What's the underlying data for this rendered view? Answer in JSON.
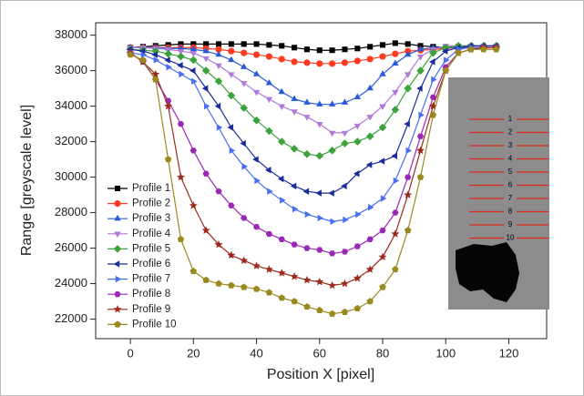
{
  "chart_data": {
    "type": "line",
    "x_label": "Position X [pixel]",
    "y_label": "Range [greyscale level]",
    "xlim": [
      -11,
      132
    ],
    "ylim": [
      20900,
      38700
    ],
    "xticks": [
      0,
      20,
      40,
      60,
      80,
      100,
      120
    ],
    "yticks": [
      22000,
      24000,
      26000,
      28000,
      30000,
      32000,
      34000,
      36000,
      38000
    ],
    "legend": "left",
    "x": [
      0,
      4,
      8,
      12,
      16,
      20,
      24,
      28,
      32,
      36,
      40,
      44,
      48,
      52,
      56,
      60,
      64,
      68,
      72,
      76,
      80,
      84,
      88,
      92,
      96,
      100,
      104,
      108,
      112,
      116
    ],
    "series": [
      {
        "name": "Profile 1",
        "color": "#000000",
        "marker": "square",
        "values": [
          37300,
          37350,
          37400,
          37450,
          37500,
          37500,
          37500,
          37500,
          37500,
          37500,
          37500,
          37450,
          37400,
          37300,
          37200,
          37150,
          37150,
          37200,
          37250,
          37350,
          37450,
          37550,
          37500,
          37400,
          37350,
          37300,
          37300,
          37300,
          37300,
          37300
        ]
      },
      {
        "name": "Profile 2",
        "color": "#ff3b1f",
        "marker": "circle",
        "values": [
          37300,
          37300,
          37300,
          37300,
          37300,
          37300,
          37250,
          37200,
          37100,
          37000,
          36900,
          36800,
          36650,
          36500,
          36450,
          36400,
          36400,
          36450,
          36550,
          36650,
          36800,
          36950,
          37100,
          37150,
          37200,
          37250,
          37300,
          37300,
          37300,
          37300
        ]
      },
      {
        "name": "Profile 3",
        "color": "#2a5bd7",
        "marker": "triangle-up",
        "values": [
          37300,
          37300,
          37300,
          37250,
          37250,
          37200,
          37100,
          36900,
          36600,
          36200,
          35800,
          35300,
          34800,
          34400,
          34200,
          34100,
          34100,
          34200,
          34500,
          35000,
          35800,
          36400,
          36900,
          37200,
          37300,
          37300,
          37300,
          37300,
          37300,
          37300
        ]
      },
      {
        "name": "Profile 4",
        "color": "#b07ad9",
        "marker": "triangle-down",
        "values": [
          37300,
          37300,
          37250,
          37200,
          37100,
          37000,
          36700,
          36300,
          35800,
          35300,
          34800,
          34400,
          34000,
          33700,
          33400,
          33000,
          32500,
          32500,
          32900,
          33400,
          34000,
          34800,
          35800,
          36800,
          37200,
          37400,
          37400,
          37400,
          37400,
          37400
        ]
      },
      {
        "name": "Profile 5",
        "color": "#3ca33c",
        "marker": "diamond",
        "values": [
          37200,
          37150,
          37100,
          36950,
          36800,
          36600,
          36000,
          35400,
          34600,
          33900,
          33200,
          32600,
          32000,
          31600,
          31300,
          31200,
          31500,
          31900,
          32000,
          32300,
          32800,
          33800,
          35000,
          36000,
          37000,
          37300,
          37400,
          37400,
          37400,
          37400
        ]
      },
      {
        "name": "Profile 6",
        "color": "#1a2d9a",
        "marker": "triangle-left",
        "values": [
          37200,
          37100,
          36900,
          36600,
          36300,
          36000,
          35000,
          34000,
          32800,
          31900,
          31000,
          30400,
          29900,
          29500,
          29200,
          29100,
          29100,
          29500,
          30200,
          30700,
          30900,
          31200,
          33000,
          35000,
          36500,
          37100,
          37300,
          37400,
          37400,
          37400
        ]
      },
      {
        "name": "Profile 7",
        "color": "#4a6ef0",
        "marker": "triangle-right",
        "values": [
          37000,
          36900,
          36600,
          36200,
          35800,
          35400,
          34000,
          32800,
          31500,
          30600,
          29800,
          29200,
          28700,
          28200,
          27900,
          27700,
          27500,
          27600,
          27900,
          28300,
          28800,
          29800,
          31500,
          33500,
          35500,
          36600,
          37200,
          37300,
          37300,
          37300
        ]
      },
      {
        "name": "Profile 8",
        "color": "#9b27b8",
        "marker": "hexagon",
        "values": [
          37000,
          36500,
          35500,
          34300,
          33000,
          31500,
          30200,
          29200,
          28400,
          27700,
          27200,
          26800,
          26500,
          26200,
          26000,
          25900,
          25700,
          25800,
          26100,
          26500,
          27000,
          28000,
          30000,
          32300,
          34500,
          36200,
          37000,
          37200,
          37300,
          37300
        ]
      },
      {
        "name": "Profile 9",
        "color": "#9c2a1e",
        "marker": "star",
        "values": [
          37000,
          36500,
          35800,
          34000,
          30000,
          28400,
          27000,
          26200,
          25600,
          25300,
          25000,
          24800,
          24600,
          24400,
          24200,
          24100,
          23900,
          24000,
          24300,
          24800,
          25500,
          26800,
          29000,
          31500,
          34000,
          36000,
          37000,
          37200,
          37300,
          37300
        ]
      },
      {
        "name": "Profile 10",
        "color": "#9a8a1e",
        "marker": "pentagon",
        "values": [
          36900,
          36600,
          35500,
          31000,
          26500,
          24700,
          24200,
          24000,
          23900,
          23800,
          23700,
          23500,
          23200,
          23000,
          22700,
          22500,
          22300,
          22400,
          22600,
          23000,
          23800,
          24800,
          27000,
          30000,
          33500,
          36000,
          37000,
          37200,
          37200,
          37200
        ]
      }
    ],
    "inset_labels": [
      "1",
      "2",
      "3",
      "4",
      "5",
      "6",
      "7",
      "8",
      "9",
      "10"
    ]
  }
}
